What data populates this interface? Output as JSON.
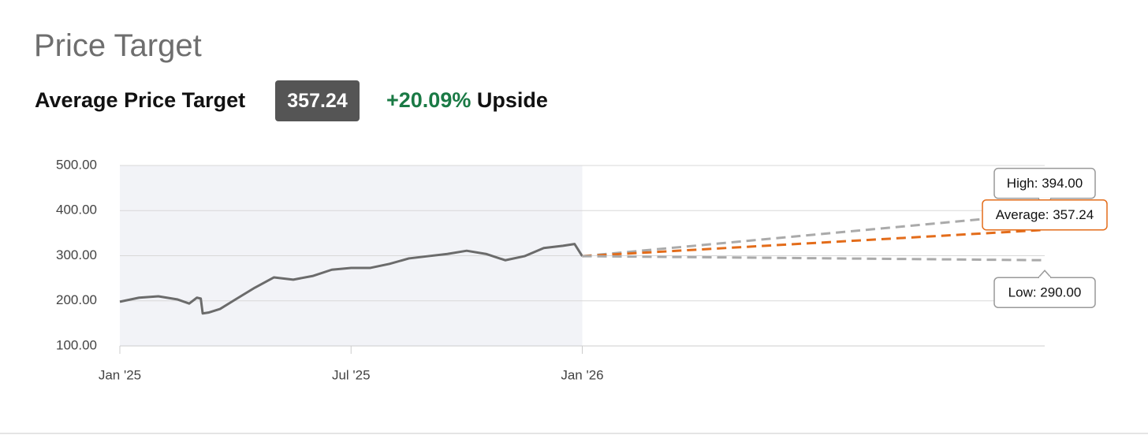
{
  "header": {
    "title": "Price Target",
    "label": "Average Price Target",
    "badge": "357.24",
    "change": "+20.09%",
    "change_suffix": "Upside"
  },
  "chart_data": {
    "type": "line",
    "xlim": [
      0,
      24
    ],
    "xticks": [
      {
        "value": 0,
        "label": "Jan '25"
      },
      {
        "value": 6,
        "label": "Jul '25"
      },
      {
        "value": 12,
        "label": "Jan '26"
      }
    ],
    "ylim": [
      100,
      500
    ],
    "yticks": [
      {
        "value": 100,
        "label": "100.00"
      },
      {
        "value": 200,
        "label": "200.00"
      },
      {
        "value": 300,
        "label": "300.00"
      },
      {
        "value": 400,
        "label": "400.00"
      },
      {
        "value": 500,
        "label": "500.00"
      }
    ],
    "grid": true,
    "history_span": [
      0,
      12
    ],
    "series": [
      {
        "color": "#6b6b6b",
        "x": [
          0,
          0.5,
          1,
          1.5,
          1.8,
          2,
          2.1,
          2.15,
          2.3,
          2.6,
          3,
          3.5,
          4,
          4.5,
          5,
          5.5,
          6,
          6.5,
          7,
          7.5,
          8,
          8.5,
          9,
          9.5,
          10,
          10.5,
          11,
          11.5,
          11.8,
          12
        ],
        "values": [
          198,
          207,
          210,
          203,
          194,
          207,
          205,
          172,
          174,
          182,
          203,
          229,
          252,
          247,
          255,
          269,
          273,
          273,
          282,
          294,
          299,
          304,
          311,
          304,
          290,
          299,
          317,
          322,
          326,
          299
        ]
      }
    ],
    "targets": {
      "x": 24,
      "values": [
        394,
        357.24,
        290
      ],
      "value_labels": [
        "High: 394.00",
        "Average: 357.24",
        "Low: 290.00"
      ],
      "colors": [
        "#aaaaaa",
        "#e36c1a",
        "#aaaaaa"
      ]
    }
  }
}
